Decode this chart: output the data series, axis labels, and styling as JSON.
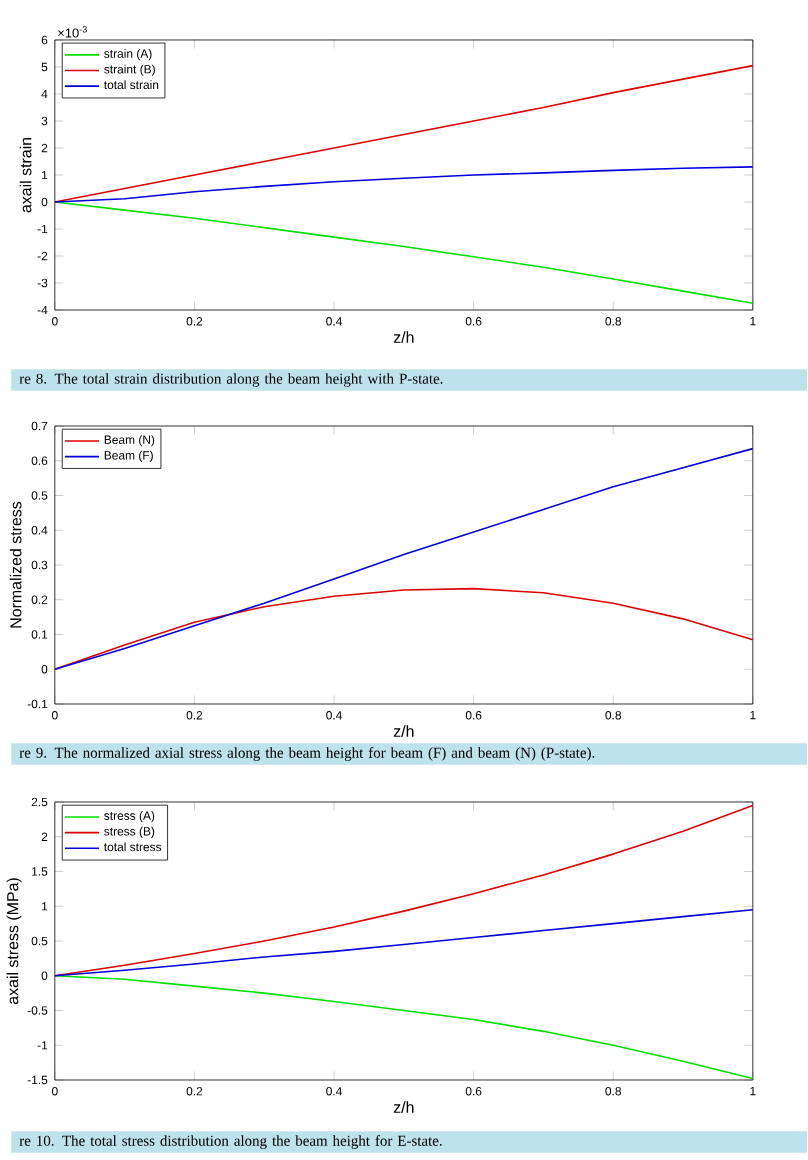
{
  "chart_data": [
    {
      "type": "line",
      "xlabel": "z/h",
      "ylabel": "axail strain",
      "annotations": [
        "×10$^{-3}$",
        "re 8. The total strain distribution along the beam height with P-state."
      ],
      "x": [
        0,
        0.1,
        0.2,
        0.3,
        0.4,
        0.5,
        0.6,
        0.7,
        0.8,
        0.9,
        1
      ],
      "xlim": [
        0,
        1
      ],
      "xticks": [
        0,
        0.2,
        0.4,
        0.6,
        0.8,
        1
      ],
      "ylim": [
        -4,
        6
      ],
      "yticks": [
        -4,
        -3,
        -2,
        -1,
        0,
        1,
        2,
        3,
        4,
        5,
        6
      ],
      "legend": "top left",
      "grid": false,
      "series": [
        {
          "name": "strain (A)",
          "color": "#00e000",
          "values": [
            0,
            -0.3,
            -0.6,
            -0.95,
            -1.3,
            -1.65,
            -2.03,
            -2.42,
            -2.85,
            -3.3,
            -3.75
          ]
        },
        {
          "name": "straint (B)",
          "color": "#e00000",
          "values": [
            0,
            0.5,
            1.0,
            1.5,
            2.0,
            2.5,
            3.0,
            3.5,
            4.05,
            4.55,
            5.05
          ]
        },
        {
          "name": "total strain",
          "color": "#0000e0",
          "values": [
            0,
            0.12,
            0.38,
            0.58,
            0.75,
            0.88,
            1.0,
            1.08,
            1.17,
            1.25,
            1.3
          ]
        }
      ]
    },
    {
      "type": "line",
      "xlabel": "z/h",
      "ylabel": "Normalized stress",
      "annotations": [
        "re 9. The normalized axial stress along the beam height for beam (F) and beam (N) (P-state)."
      ],
      "x": [
        0,
        0.1,
        0.2,
        0.3,
        0.4,
        0.5,
        0.6,
        0.7,
        0.8,
        0.9,
        1
      ],
      "xlim": [
        0,
        1
      ],
      "xticks": [
        0,
        0.2,
        0.4,
        0.6,
        0.8,
        1
      ],
      "ylim": [
        -0.1,
        0.7
      ],
      "yticks": [
        -0.1,
        0,
        0.1,
        0.2,
        0.3,
        0.4,
        0.5,
        0.6,
        0.7
      ],
      "legend": "top left",
      "grid": false,
      "series": [
        {
          "name": "Beam (N)",
          "color": "#e00000",
          "values": [
            0,
            0.07,
            0.135,
            0.18,
            0.21,
            0.228,
            0.232,
            0.22,
            0.19,
            0.145,
            0.085
          ]
        },
        {
          "name": "Beam (F)",
          "color": "#0000e0",
          "values": [
            0,
            0.06,
            0.125,
            0.19,
            0.26,
            0.33,
            0.395,
            0.46,
            0.525,
            0.58,
            0.635
          ]
        }
      ]
    },
    {
      "type": "line",
      "xlabel": "z/h",
      "ylabel": "axail stress (MPa)",
      "annotations": [
        "re 10. The total stress distribution along the beam height for E-state."
      ],
      "x": [
        0,
        0.1,
        0.2,
        0.3,
        0.4,
        0.5,
        0.6,
        0.7,
        0.8,
        0.9,
        1
      ],
      "xlim": [
        0,
        1
      ],
      "xticks": [
        0,
        0.2,
        0.4,
        0.6,
        0.8,
        1
      ],
      "ylim": [
        -1.5,
        2.5
      ],
      "yticks": [
        -1.5,
        -1,
        -0.5,
        0,
        0.5,
        1,
        1.5,
        2,
        2.5
      ],
      "legend": "top left",
      "grid": false,
      "series": [
        {
          "name": "stress (A)",
          "color": "#00e000",
          "values": [
            0,
            -0.05,
            -0.15,
            -0.25,
            -0.37,
            -0.5,
            -0.63,
            -0.8,
            -1.0,
            -1.23,
            -1.48
          ]
        },
        {
          "name": "stress (B)",
          "color": "#e00000",
          "values": [
            0,
            0.15,
            0.32,
            0.5,
            0.7,
            0.93,
            1.18,
            1.45,
            1.75,
            2.08,
            2.45
          ]
        },
        {
          "name": "total stress",
          "color": "#0000e0",
          "values": [
            0,
            0.08,
            0.17,
            0.27,
            0.35,
            0.45,
            0.55,
            0.65,
            0.75,
            0.85,
            0.95
          ]
        }
      ]
    }
  ]
}
